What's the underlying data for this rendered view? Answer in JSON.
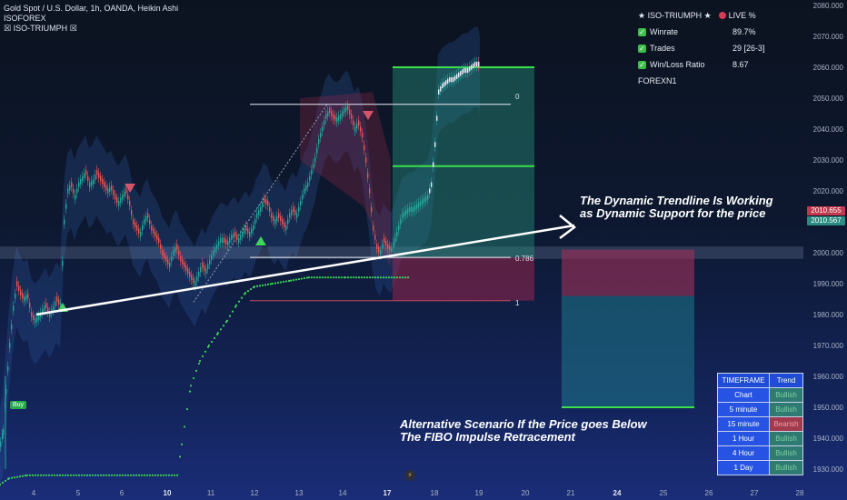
{
  "legend": {
    "symbol": "Gold Spot / U.S. Dollar, 1h, OANDA, Heikin Ashi",
    "line2": "ISOFOREX",
    "line3": "☒ ISO-TRIUMPH ☒"
  },
  "stats_panel": {
    "header_title": "★ ISO-TRIUMPH ★",
    "header_live": "LIVE %",
    "rows": [
      {
        "label": "Winrate",
        "value": "89.7%"
      },
      {
        "label": "Trades",
        "value": "29 [26-3]"
      },
      {
        "label": "Win/Loss Ratio",
        "value": "8.67"
      }
    ],
    "footer": "FOREXN1"
  },
  "price_axis": {
    "ticks": [
      "2080.000",
      "2070.000",
      "2060.000",
      "2050.000",
      "2040.000",
      "2030.000",
      "2020.000",
      "2010.000",
      "2000.000",
      "1990.000",
      "1980.000",
      "1970.000",
      "1960.000",
      "1950.000",
      "1940.000",
      "1930.000"
    ],
    "tag_red": "2010.655",
    "tag_teal": "2010.567",
    "colors": {
      "red": "#c2384d",
      "teal": "#2b8c82"
    }
  },
  "time_axis": {
    "labels": [
      "4",
      "5",
      "6",
      "10",
      "11",
      "12",
      "13",
      "14",
      "15",
      "17",
      "18",
      "19",
      "20",
      "21",
      "24",
      "25",
      "26",
      "27",
      "28"
    ]
  },
  "fib_levels": {
    "top": "0",
    "mid": "0.786",
    "bottom": "1"
  },
  "annotations": {
    "top_line1": "The Dynamic Trendline Is Working",
    "top_line2": "as Dynamic Support for the price",
    "bottom_line1": "Alternative Scenario If the Price goes Below",
    "bottom_line2": "The FIBO Impulse Retracement"
  },
  "timeframe_table": {
    "headers": [
      "TIMEFRAME",
      "Trend"
    ],
    "rows": [
      {
        "tf": "Chart",
        "trend": "Bullish",
        "bull": true
      },
      {
        "tf": "5 minute",
        "trend": "Bullish",
        "bull": true
      },
      {
        "tf": "15 minute",
        "trend": "Bearish",
        "bull": false
      },
      {
        "tf": "1 Hour",
        "trend": "Bullish",
        "bull": true
      },
      {
        "tf": "4 Hour",
        "trend": "Bullish",
        "bull": true
      },
      {
        "tf": "1 Day",
        "trend": "Bullish",
        "bull": true
      }
    ]
  },
  "buy_label": "Buy",
  "chart_data": {
    "type": "candlestick",
    "ylim": [
      1925,
      2082
    ],
    "bullish_color": "#26a69a",
    "bearish_color": "#ef5350",
    "close_path": [
      [
        0,
        1938
      ],
      [
        3,
        1942
      ],
      [
        6,
        1955
      ],
      [
        10,
        1970
      ],
      [
        14,
        1982
      ],
      [
        18,
        1990
      ],
      [
        22,
        1987
      ],
      [
        26,
        1985
      ],
      [
        30,
        1986
      ],
      [
        34,
        1980
      ],
      [
        38,
        1978
      ],
      [
        42,
        1979
      ],
      [
        46,
        1981
      ],
      [
        50,
        1983
      ],
      [
        54,
        1980
      ],
      [
        58,
        1982
      ],
      [
        62,
        1985
      ],
      [
        66,
        1983
      ],
      [
        70,
        2010
      ],
      [
        74,
        2020
      ],
      [
        78,
        2022
      ],
      [
        82,
        2018
      ],
      [
        86,
        2022
      ],
      [
        90,
        2024
      ],
      [
        94,
        2026
      ],
      [
        98,
        2022
      ],
      [
        102,
        2023
      ],
      [
        106,
        2026
      ],
      [
        110,
        2024
      ],
      [
        114,
        2022
      ],
      [
        118,
        2020
      ],
      [
        122,
        2021
      ],
      [
        126,
        2018
      ],
      [
        130,
        2016
      ],
      [
        134,
        2018
      ],
      [
        138,
        2020
      ],
      [
        142,
        2016
      ],
      [
        146,
        2010
      ],
      [
        150,
        2008
      ],
      [
        154,
        2006
      ],
      [
        158,
        2010
      ],
      [
        162,
        2012
      ],
      [
        166,
        2008
      ],
      [
        170,
        2006
      ],
      [
        174,
        2004
      ],
      [
        178,
        2000
      ],
      [
        182,
        1998
      ],
      [
        186,
        1996
      ],
      [
        190,
        2000
      ],
      [
        194,
        2002
      ],
      [
        198,
        1998
      ],
      [
        202,
        1996
      ],
      [
        206,
        1994
      ],
      [
        210,
        1992
      ],
      [
        214,
        1990
      ],
      [
        218,
        1993
      ],
      [
        222,
        1996
      ],
      [
        226,
        1994
      ],
      [
        230,
        1997
      ],
      [
        234,
        2000
      ],
      [
        238,
        2002
      ],
      [
        242,
        2004
      ],
      [
        246,
        2004
      ],
      [
        250,
        2003
      ],
      [
        254,
        2005
      ],
      [
        258,
        2006
      ],
      [
        262,
        2004
      ],
      [
        266,
        2006
      ],
      [
        270,
        2008
      ],
      [
        274,
        2006
      ],
      [
        278,
        2008
      ],
      [
        282,
        2012
      ],
      [
        286,
        2014
      ],
      [
        290,
        2017
      ],
      [
        294,
        2016
      ],
      [
        298,
        2012
      ],
      [
        302,
        2010
      ],
      [
        306,
        2012
      ],
      [
        310,
        2010
      ],
      [
        314,
        2008
      ],
      [
        318,
        2012
      ],
      [
        322,
        2014
      ],
      [
        326,
        2012
      ],
      [
        330,
        2016
      ],
      [
        334,
        2020
      ],
      [
        338,
        2022
      ],
      [
        342,
        2026
      ],
      [
        346,
        2030
      ],
      [
        350,
        2036
      ],
      [
        354,
        2040
      ],
      [
        358,
        2044
      ],
      [
        362,
        2046
      ],
      [
        366,
        2044
      ],
      [
        370,
        2043
      ],
      [
        374,
        2044
      ],
      [
        378,
        2046
      ],
      [
        382,
        2047
      ],
      [
        386,
        2044
      ],
      [
        390,
        2040
      ],
      [
        394,
        2042
      ],
      [
        398,
        2038
      ],
      [
        402,
        2030
      ],
      [
        406,
        2020
      ],
      [
        410,
        2008
      ],
      [
        414,
        2002
      ],
      [
        418,
        2000
      ],
      [
        422,
        2004
      ],
      [
        426,
        2002
      ],
      [
        430,
        2001
      ],
      [
        434,
        2004
      ],
      [
        438,
        2008
      ],
      [
        442,
        2012
      ],
      [
        446,
        2013
      ],
      [
        450,
        2014
      ],
      [
        454,
        2014
      ],
      [
        458,
        2015
      ],
      [
        462,
        2016
      ],
      [
        466,
        2017
      ],
      [
        470,
        2018
      ],
      [
        474,
        2022
      ],
      [
        478,
        2035
      ],
      [
        482,
        2052
      ],
      [
        486,
        2054
      ],
      [
        490,
        2055
      ],
      [
        494,
        2056
      ],
      [
        498,
        2056
      ],
      [
        502,
        2057
      ],
      [
        506,
        2058
      ],
      [
        510,
        2059
      ],
      [
        514,
        2059
      ],
      [
        518,
        2060
      ],
      [
        522,
        2061
      ],
      [
        526,
        2061
      ],
      [
        528,
        2058
      ]
    ],
    "trailing_stop": [
      [
        0,
        1925
      ],
      [
        10,
        1927
      ],
      [
        30,
        1928
      ],
      [
        90,
        1928
      ],
      [
        150,
        1928
      ],
      [
        195,
        1928
      ],
      [
        200,
        1938
      ],
      [
        210,
        1957
      ],
      [
        220,
        1965
      ],
      [
        230,
        1970
      ],
      [
        240,
        1974
      ],
      [
        250,
        1978
      ],
      [
        260,
        1983
      ],
      [
        270,
        1987
      ],
      [
        280,
        1989
      ],
      [
        300,
        1990
      ],
      [
        320,
        1991
      ],
      [
        340,
        1992
      ],
      [
        380,
        1992
      ],
      [
        450,
        1992
      ]
    ],
    "trendline": [
      [
        40,
        1980
      ],
      [
        632,
        2010
      ]
    ],
    "fib_lines": [
      {
        "level": "0",
        "price": 2048,
        "x0": 275,
        "x1": 562
      },
      {
        "level": "0.786",
        "price": 1998.5,
        "x0": 275,
        "x1": 562
      },
      {
        "level": "1",
        "price": 1984.5,
        "x0": 275,
        "x1": 562
      }
    ],
    "long_position": {
      "x0": 432,
      "x1": 588,
      "entry": 1998.5,
      "tp": 2060,
      "mid": 2028,
      "sl": 1984.5
    },
    "alt_position": {
      "x0": 618,
      "x1": 764,
      "entry": 2001,
      "sl": 1986,
      "tp": 1950
    },
    "support_zone": {
      "top": 2002,
      "bottom": 1998
    }
  }
}
